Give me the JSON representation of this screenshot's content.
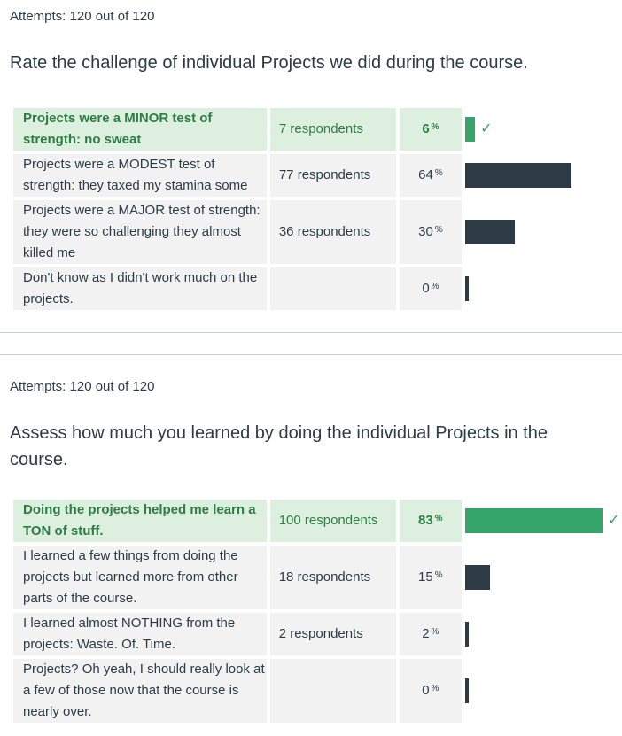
{
  "questions": [
    {
      "attempts": "Attempts: 120 out of 120",
      "title": "Rate the challenge of individual Projects we did during the course.",
      "answers": [
        {
          "text": "Projects were a MINOR test of strength: no sweat",
          "respondents": "7 respondents",
          "percent": "6",
          "fraction": 0.06,
          "correct": true
        },
        {
          "text": "Projects were a MODEST test of strength: they taxed my stamina some",
          "respondents": "77 respondents",
          "percent": "64",
          "fraction": 0.64,
          "correct": false
        },
        {
          "text": "Projects were a MAJOR test of strength: they were so challenging they almost killed me",
          "respondents": "36 respondents",
          "percent": "30",
          "fraction": 0.3,
          "correct": false
        },
        {
          "text": "Don't know as I didn't work much on the projects.",
          "respondents": "",
          "percent": "0",
          "fraction": 0.0,
          "correct": false
        }
      ]
    },
    {
      "attempts": "Attempts: 120 out of 120",
      "title": "Assess how much you learned by doing the individual Projects in the course.",
      "answers": [
        {
          "text": "Doing the projects helped me learn a TON of stuff.",
          "respondents": "100 respondents",
          "percent": "83",
          "fraction": 0.83,
          "correct": true
        },
        {
          "text": "I learned a few things from doing the projects but learned more from other parts of the course.",
          "respondents": "18 respondents",
          "percent": "15",
          "fraction": 0.15,
          "correct": false
        },
        {
          "text": "I learned almost NOTHING from the projects: Waste. Of. Time.",
          "respondents": "2 respondents",
          "percent": "2",
          "fraction": 0.02,
          "correct": false
        },
        {
          "text": "Projects? Oh yeah, I should really look at a few of those now that the course is nearly over.",
          "respondents": "",
          "percent": "0",
          "fraction": 0.0,
          "correct": false
        }
      ]
    }
  ],
  "percent_sign": "%",
  "colors": {
    "correct_bar": "#35a56a",
    "bar": "#2d3b45",
    "correct_bg": "#ddefdf",
    "row_bg": "#f2f2f2"
  }
}
